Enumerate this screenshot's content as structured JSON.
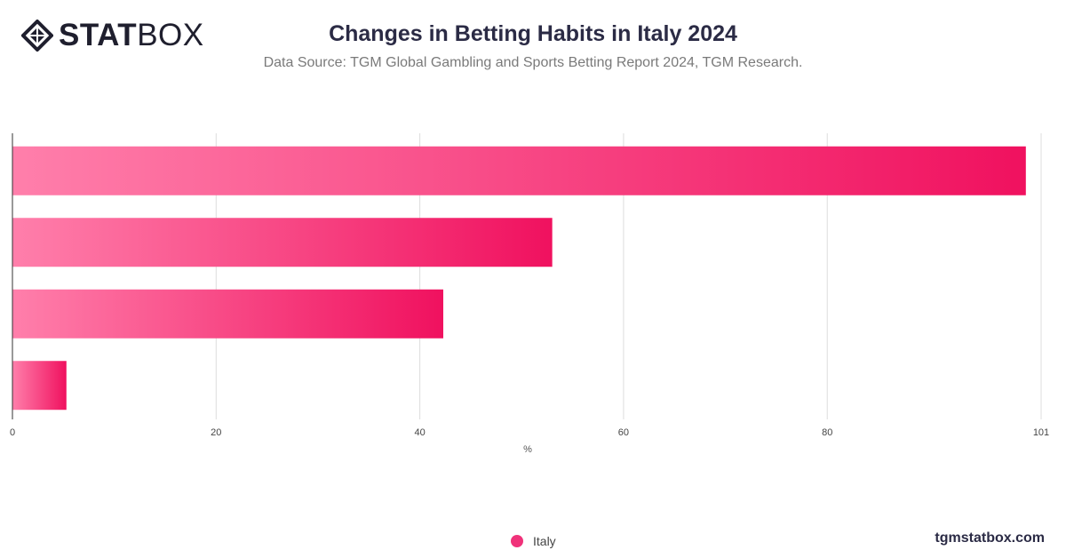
{
  "brand": {
    "logo_bold": "STAT",
    "logo_light": "BOX",
    "website": "tgmstatbox.com"
  },
  "header": {
    "title": "Changes in Betting Habits in Italy 2024",
    "subtitle": "Data Source: TGM Global Gambling and Sports Betting Report 2024, TGM Research."
  },
  "legend": {
    "label": "Italy"
  },
  "colors": {
    "bar_start": "#ff7fab",
    "bar_end": "#f0115f",
    "legend_dot": "#f0327a",
    "grid": "#dddddd",
    "axis": "#333333",
    "text": "#2b2b45"
  },
  "chart_data": {
    "type": "bar",
    "orientation": "horizontal",
    "categories": [
      "",
      "",
      "",
      ""
    ],
    "series": [
      {
        "name": "Italy",
        "values": [
          99.5,
          53,
          42.3,
          5.3
        ]
      }
    ],
    "x_ticks": [
      0,
      20,
      40,
      60,
      80,
      101
    ],
    "xlim": [
      0,
      101
    ],
    "xlabel": "%",
    "grid": true,
    "legend_position": "bottom-center"
  }
}
